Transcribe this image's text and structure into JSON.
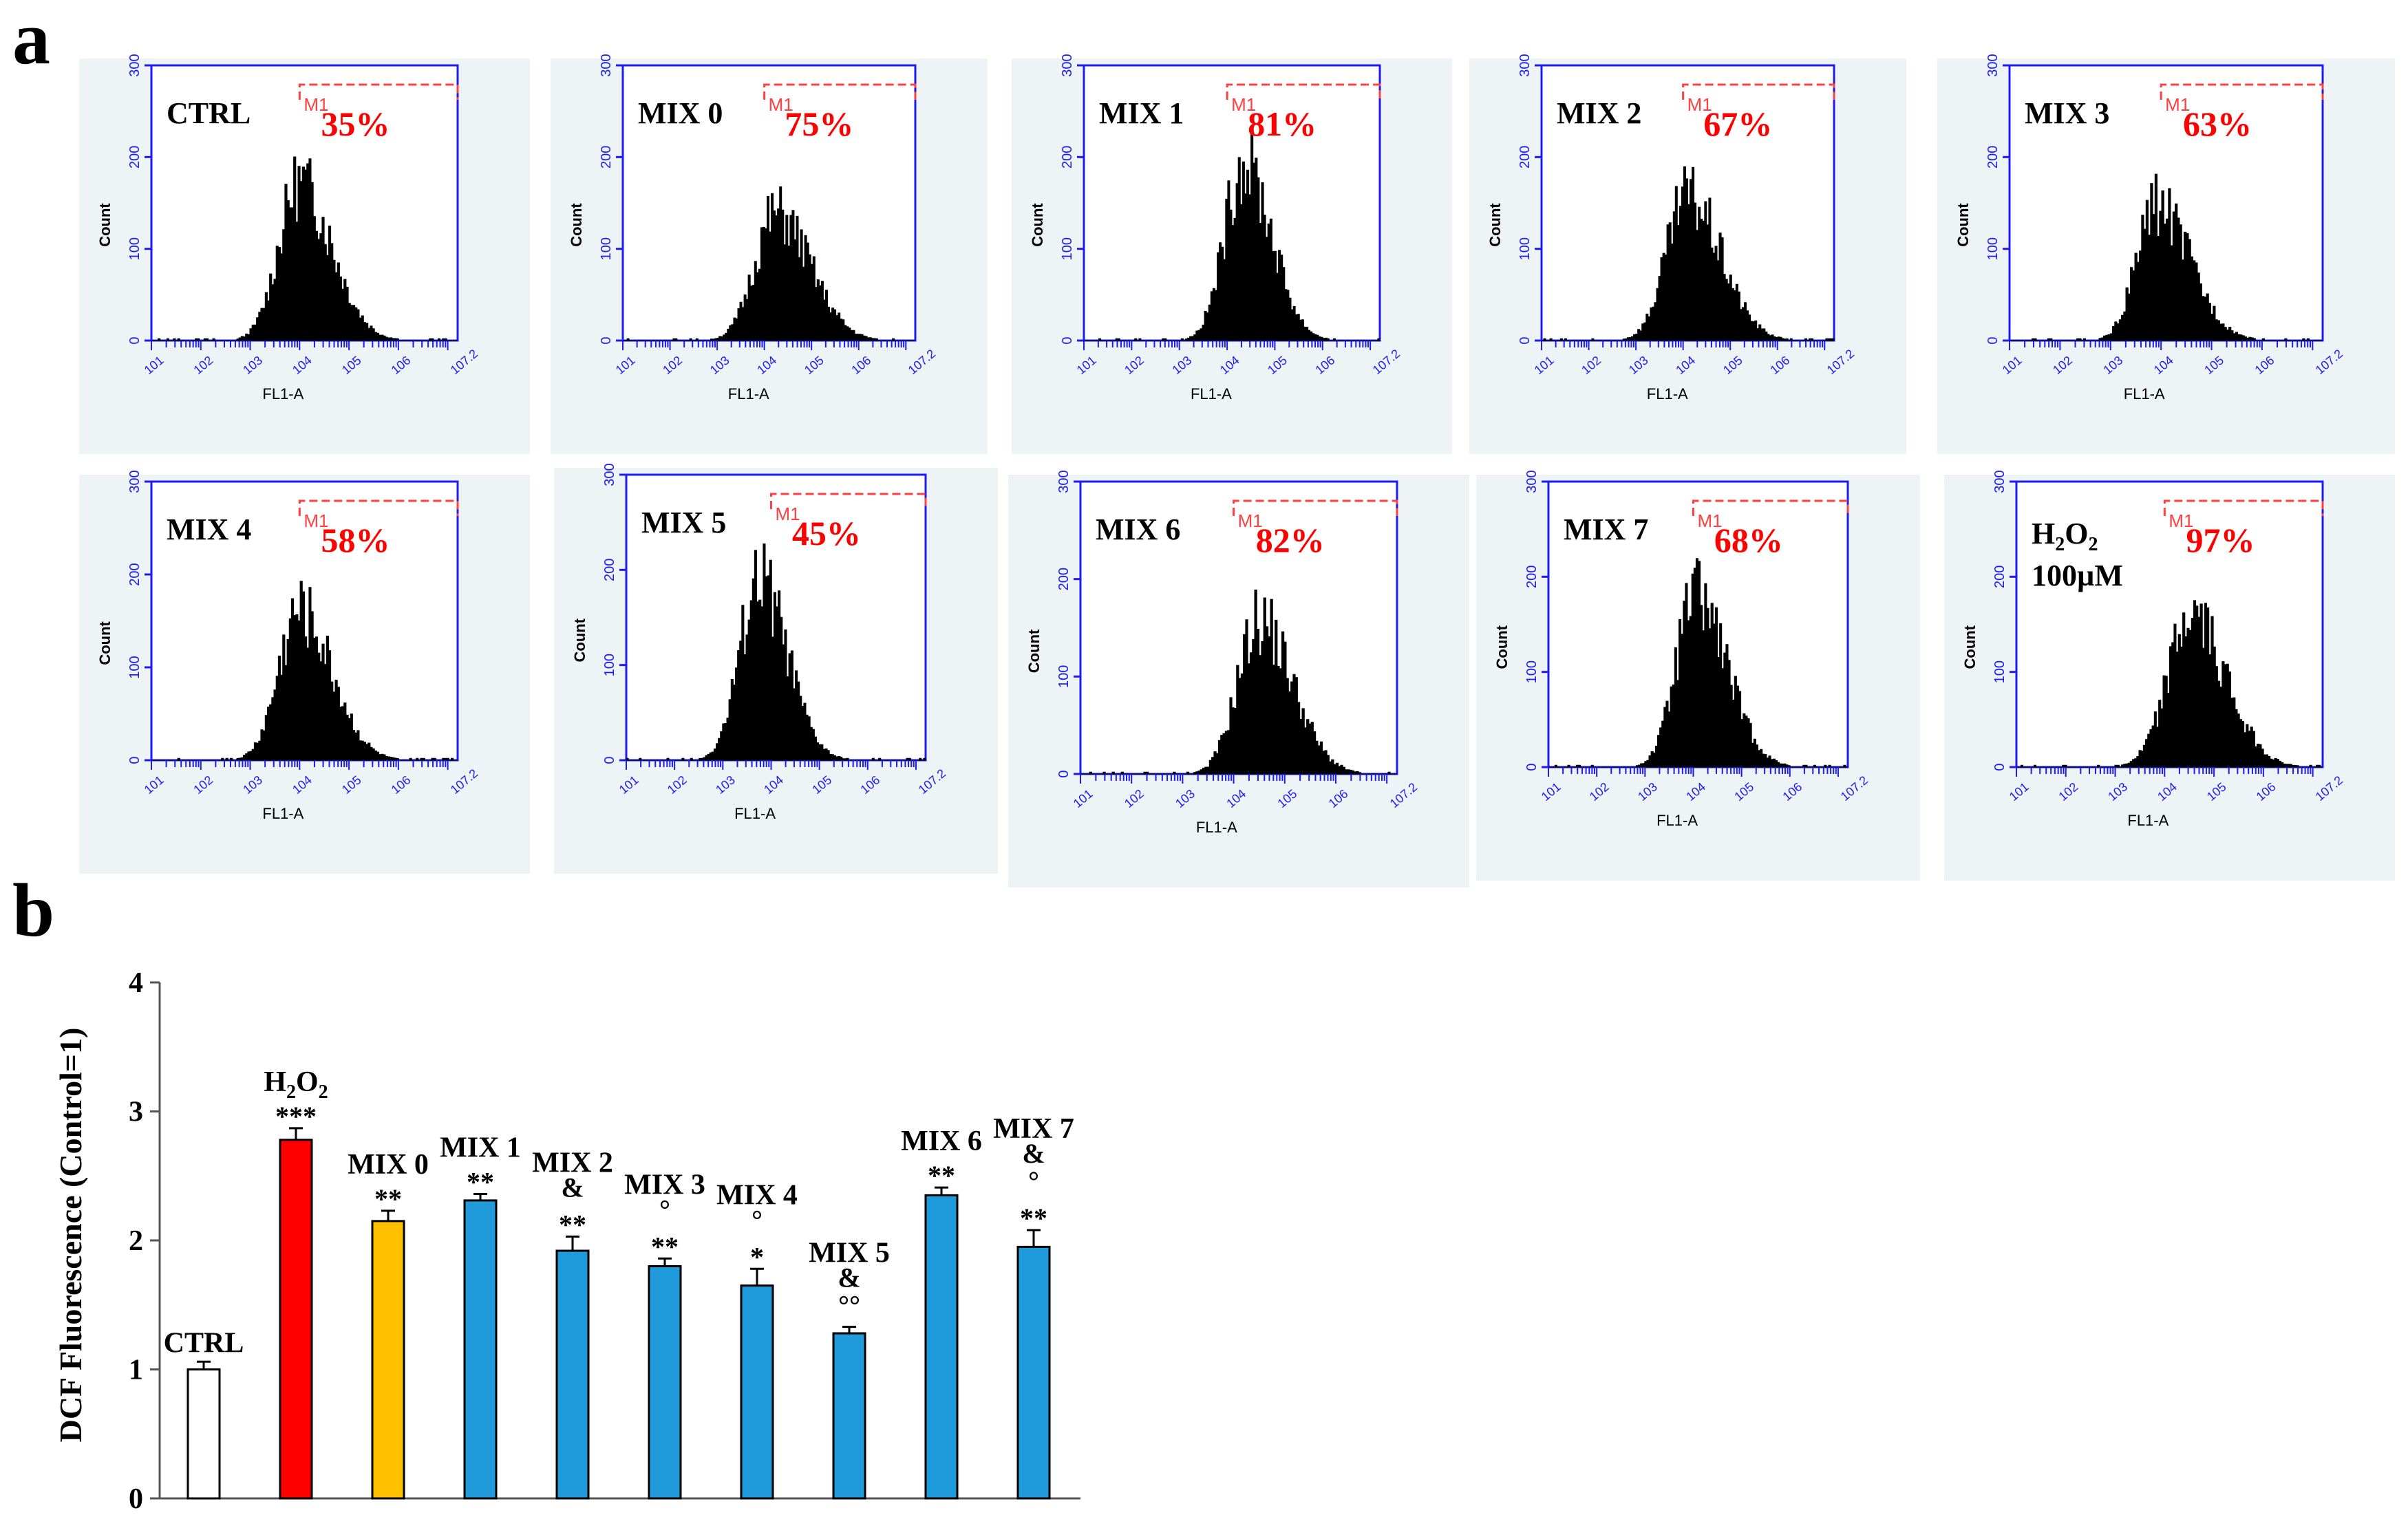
{
  "panels": {
    "a_letter": "a",
    "b_letter": "b"
  },
  "histograms": [
    {
      "label": "CTRL",
      "percent": "35%",
      "peak": 185,
      "center": 4.0,
      "spread": 0.42,
      "skew": 0.55
    },
    {
      "label": "MIX 0",
      "percent": "75%",
      "peak": 150,
      "center": 4.25,
      "spread": 0.45,
      "skew": 0.6
    },
    {
      "label": "MIX 1",
      "percent": "81%",
      "peak": 210,
      "center": 4.35,
      "spread": 0.4,
      "skew": 0.45
    },
    {
      "label": "MIX 2",
      "percent": "67%",
      "peak": 170,
      "center": 4.1,
      "spread": 0.45,
      "skew": 0.55
    },
    {
      "label": "MIX 3",
      "percent": "63%",
      "peak": 160,
      "center": 3.9,
      "spread": 0.38,
      "skew": 0.75
    },
    {
      "label": "MIX 4",
      "percent": "58%",
      "peak": 175,
      "center": 4.0,
      "spread": 0.42,
      "skew": 0.55
    },
    {
      "label": "MIX 5",
      "percent": "45%",
      "peak": 205,
      "center": 3.75,
      "spread": 0.4,
      "skew": 0.45
    },
    {
      "label": "MIX 6",
      "percent": "82%",
      "peak": 170,
      "center": 4.5,
      "spread": 0.42,
      "skew": 0.55
    },
    {
      "label": "MIX 7",
      "percent": "68%",
      "peak": 195,
      "center": 4.05,
      "spread": 0.4,
      "skew": 0.6
    },
    {
      "label": "H2O2 100µM",
      "label_main": "H",
      "label_sub1": "2",
      "label_o": "O",
      "label_sub2": "2",
      "label_line2": "100µM",
      "percent": "97%",
      "peak": 170,
      "center": 4.55,
      "spread": 0.48,
      "skew": 0.45
    }
  ],
  "histogram_axes": {
    "y_label": "Count",
    "y_ticks": [
      "0",
      "100",
      "200",
      "300"
    ],
    "x_label": "FL1-A",
    "x_ticks": [
      "10^1",
      "10^2",
      "10^3",
      "10^4",
      "10^5",
      "10^6",
      "10^7.2"
    ],
    "gate_label": "M1",
    "axis_color": "#1c1cf0",
    "gate_color": "#ff4040"
  },
  "chart_data": {
    "type": "bar",
    "title": "",
    "xlabel": "",
    "ylabel": "DCF Fluorescence  (Control=1)",
    "ylim": [
      0,
      4
    ],
    "y_ticks": [
      "0",
      "1",
      "2",
      "3",
      "4"
    ],
    "categories": [
      "CTRL",
      "H2O2",
      "MIX 0",
      "MIX 1",
      "MIX 2",
      "MIX 3",
      "MIX 4",
      "MIX 5",
      "MIX 6",
      "MIX 7"
    ],
    "values": [
      1.0,
      2.78,
      2.15,
      2.31,
      1.92,
      1.8,
      1.65,
      1.28,
      2.35,
      1.95
    ],
    "errors": [
      0.06,
      0.09,
      0.08,
      0.05,
      0.11,
      0.06,
      0.13,
      0.05,
      0.06,
      0.13
    ],
    "colors": [
      "#ffffff",
      "#ff0000",
      "#ffc000",
      "#1f9bdc",
      "#1f9bdc",
      "#1f9bdc",
      "#1f9bdc",
      "#1f9bdc",
      "#1f9bdc",
      "#1f9bdc"
    ],
    "annotations": [
      [],
      [
        "***"
      ],
      [
        "**"
      ],
      [
        "**"
      ],
      [
        "**",
        "&"
      ],
      [
        "**",
        "°"
      ],
      [
        "*",
        "°"
      ],
      [
        "°°",
        "&"
      ],
      [
        "**"
      ],
      [
        "**",
        "°",
        "&"
      ]
    ]
  }
}
